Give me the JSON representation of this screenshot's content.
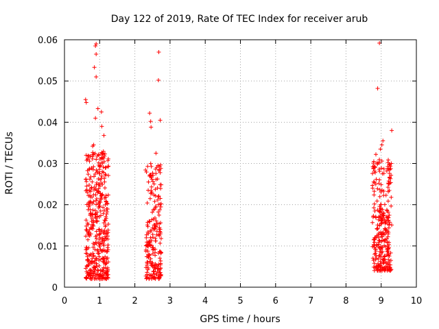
{
  "chart_data": {
    "type": "scatter",
    "title": "Day 122 of 2019, Rate Of TEC Index for receiver arub",
    "xlabel": "GPS time / hours",
    "ylabel": "ROTI / TECUs",
    "xlim": [
      0,
      10
    ],
    "ylim": [
      0,
      0.06
    ],
    "xticks": [
      "0",
      "1",
      "2",
      "3",
      "4",
      "5",
      "6",
      "7",
      "8",
      "9",
      "10"
    ],
    "yticks": [
      "0",
      "0.01",
      "0.02",
      "0.03",
      "0.04",
      "0.05",
      "0.06"
    ],
    "grid": true,
    "marker": "+",
    "series": [
      {
        "name": "ROTI",
        "color": "#ff0000",
        "clusters": [
          {
            "x_range": [
              0.6,
              1.25
            ],
            "y_range": [
              0.002,
              0.033
            ],
            "count": 420
          },
          {
            "x_range": [
              2.3,
              2.75
            ],
            "y_range": [
              0.002,
              0.03
            ],
            "count": 220
          },
          {
            "x_range": [
              8.75,
              9.3
            ],
            "y_range": [
              0.004,
              0.031
            ],
            "count": 300
          }
        ],
        "points": [
          [
            0.6,
            0.0455
          ],
          [
            0.62,
            0.0448
          ],
          [
            0.9,
            0.059
          ],
          [
            0.88,
            0.0585
          ],
          [
            0.9,
            0.0565
          ],
          [
            0.85,
            0.0533
          ],
          [
            0.9,
            0.051
          ],
          [
            0.95,
            0.0433
          ],
          [
            1.05,
            0.0425
          ],
          [
            0.88,
            0.041
          ],
          [
            1.06,
            0.039
          ],
          [
            0.83,
            0.0345
          ],
          [
            0.8,
            0.0342
          ],
          [
            1.08,
            0.0325
          ],
          [
            1.12,
            0.0368
          ],
          [
            2.42,
            0.0422
          ],
          [
            2.45,
            0.0402
          ],
          [
            2.46,
            0.0388
          ],
          [
            2.68,
            0.057
          ],
          [
            2.67,
            0.0502
          ],
          [
            2.72,
            0.0405
          ],
          [
            2.6,
            0.0325
          ],
          [
            8.95,
            0.0592
          ],
          [
            8.9,
            0.0482
          ],
          [
            9.3,
            0.038
          ],
          [
            9.05,
            0.0355
          ],
          [
            9.02,
            0.0345
          ],
          [
            8.98,
            0.0335
          ],
          [
            8.85,
            0.0322
          ]
        ]
      }
    ]
  }
}
